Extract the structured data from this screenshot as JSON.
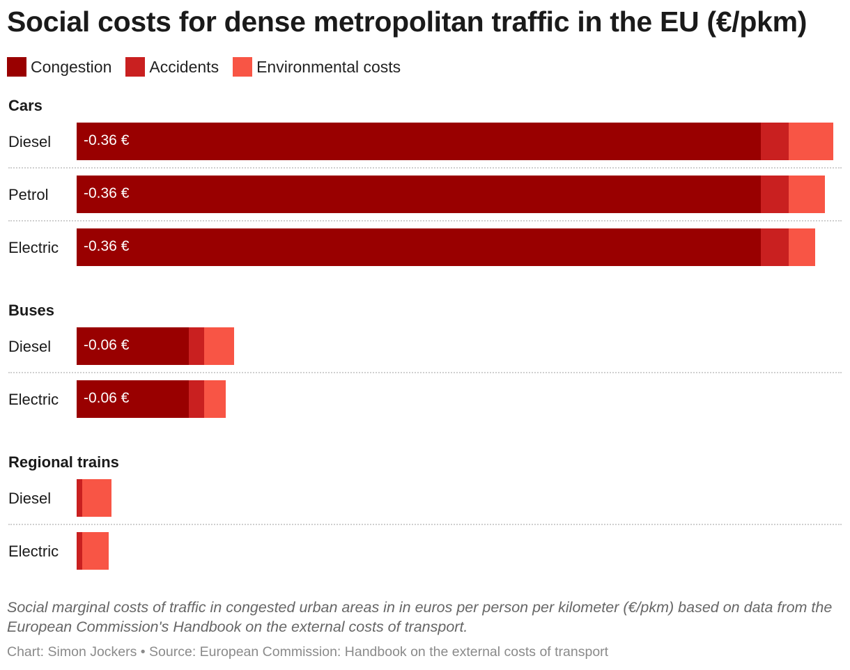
{
  "title": "Social costs for dense metropolitan traffic in the EU (€/pkm)",
  "legend": [
    {
      "label": "Congestion",
      "color": "#990000"
    },
    {
      "label": "Accidents",
      "color": "#c92020"
    },
    {
      "label": "Environmental costs",
      "color": "#f85545"
    }
  ],
  "chart_data": {
    "type": "bar",
    "orientation": "horizontal",
    "stacked": true,
    "title": "Social costs for dense metropolitan traffic in the EU (€/pkm)",
    "xlabel": "",
    "ylabel": "",
    "xlim": [
      0,
      0.401
    ],
    "grid": false,
    "legend_placement": "top-left",
    "groups": [
      {
        "name": "Cars",
        "rows": [
          {
            "label": "Diesel",
            "value_label": "-0.36 €",
            "values": [
              0.36,
              0.0146,
              0.0233
            ]
          },
          {
            "label": "Petrol",
            "value_label": "-0.36 €",
            "values": [
              0.36,
              0.0146,
              0.0189
            ]
          },
          {
            "label": "Electric",
            "value_label": "-0.36 €",
            "values": [
              0.36,
              0.0146,
              0.0138
            ]
          }
        ]
      },
      {
        "name": "Buses",
        "rows": [
          {
            "label": "Diesel",
            "value_label": "-0.06 €",
            "values": [
              0.0589,
              0.008,
              0.016
            ]
          },
          {
            "label": "Electric",
            "value_label": "-0.06 €",
            "values": [
              0.0589,
              0.008,
              0.0116
            ]
          }
        ]
      },
      {
        "name": "Regional trains",
        "rows": [
          {
            "label": "Diesel",
            "value_label": "",
            "values": [
              0,
              0.0029,
              0.0153
            ]
          },
          {
            "label": "Electric",
            "value_label": "",
            "values": [
              0,
              0.0029,
              0.0138
            ]
          }
        ]
      }
    ]
  },
  "description": "Social marginal costs of traffic in congested urban areas in in euros per person per kilometer (€/pkm) based on data from the European Commission's Handbook on the external costs of transport.",
  "credit": "Chart: Simon Jockers • Source: European Commission: Handbook on the external costs of transport"
}
